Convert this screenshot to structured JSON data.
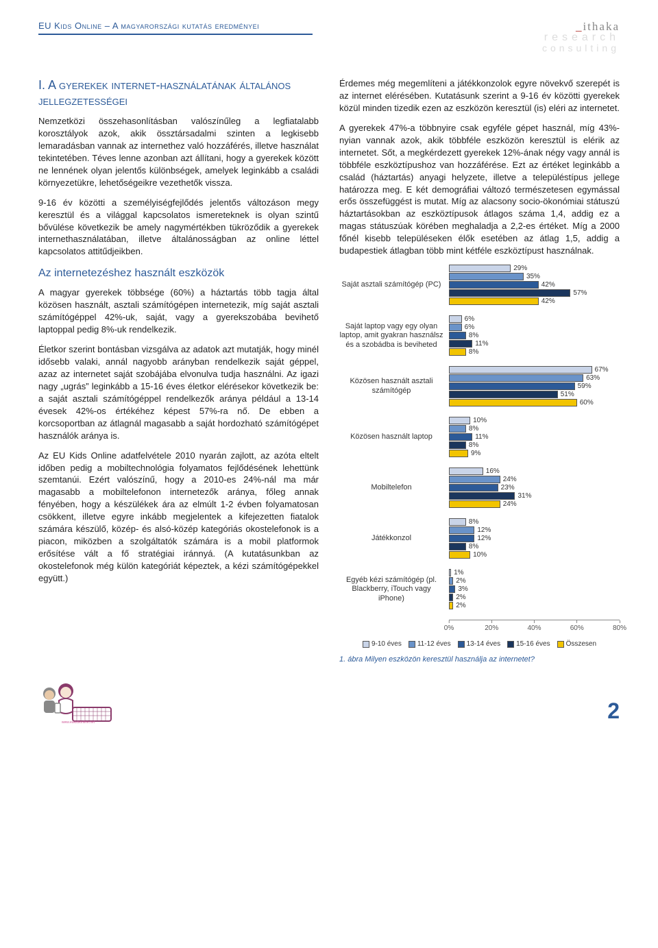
{
  "header": {
    "title": "EU Kids Online – A magyarországi kutatás eredményei",
    "logo_line1_pre": "_",
    "logo_line1_main": "ithaka",
    "logo_line2": "research",
    "logo_line3": "consulting"
  },
  "left_col": {
    "section_title": "I. A gyerekek internet-használatának általános jellegzetességei",
    "p1": "Nemzetközi összehasonlításban valószínűleg a legfiatalabb korosztályok azok, akik össztársadalmi szinten a legkisebb lemaradásban vannak az internethez való hozzáférés, illetve használat tekintetében. Téves lenne azonban azt állítani, hogy a gyerekek között ne lennének olyan jelentős különbségek, amelyek leginkább a családi környezetükre, lehetőségeikre vezethetők vissza.",
    "p2": "9-16 év közötti a személyiségfejlődés jelentős változáson megy keresztül és a világgal kapcsolatos ismereteknek is olyan szintű bővülése következik be amely nagymértékben tükröződik a gyerekek internethasználatában, illetve általánosságban az online léttel kapcsolatos attitűdjeikben.",
    "sub_title": "Az internetezéshez használt eszközök",
    "p3": "A magyar gyerekek többsége (60%) a háztartás több tagja által közösen használt, asztali számítógépen internetezik, míg saját asztali számítógéppel 42%-uk, saját, vagy a gyerekszobába bevihető laptoppal pedig 8%-uk rendelkezik.",
    "p4": "Életkor szerint bontásban vizsgálva az adatok azt mutatják, hogy minél idősebb valaki, annál nagyobb arányban rendelkezik saját géppel, azaz az internetet saját szobájába elvonulva tudja használni. Az igazi nagy „ugrás” leginkább a 15-16 éves életkor elérésekor következik be: a saját asztali számítógéppel rendelkezők aránya például a 13-14 évesek 42%-os értékéhez képest 57%-ra nő. De ebben a korcsoportban az átlagnál magasabb a saját hordozható számítógépet használók aránya is.",
    "p5": "Az EU Kids Online adatfelvétele 2010 nyarán zajlott, az azóta eltelt időben pedig a mobiltechnológia folyamatos fejlődésének lehettünk szemtanúi. Ezért valószínű, hogy a 2010-es 24%-nál ma már magasabb a mobiltelefonon internetezők aránya, főleg annak fényében, hogy a készülékek ára az elmúlt 1-2 évben folyamatosan csökkent, illetve egyre inkább megjelentek a kifejezetten fiatalok számára készülő, közép- és alsó-közép kategóriás okostelefonok is a piacon, miközben a szolgáltatók számára is a mobil platformok erősítése vált a fő stratégiai iránnyá. (A kutatásunkban az okostelefonok még külön kategóriát képeztek, a kézi számítógépekkel együtt.)"
  },
  "right_col": {
    "p1": "Érdemes még megemlíteni a játékkonzolok egyre növekvő szerepét is az internet elérésében. Kutatásunk szerint a 9-16 év közötti gyerekek közül minden tizedik ezen az eszközön keresztül (is) eléri az internetet.",
    "p2": "A gyerekek 47%-a többnyire csak egyféle gépet használ, míg 43%-nyian vannak azok, akik többféle eszközön keresztül is elérik az internetet. Sőt, a megkérdezett gyerekek 12%-ának négy vagy annál is többféle eszköztípushoz van hozzáférése. Ezt az értéket leginkább a család (háztartás) anyagi helyzete, illetve a településtípus jellege határozza meg. E két demográfiai változó természetesen egymással erős összefüggést is mutat. Míg az alacsony socio-ökonómiai státuszú háztartásokban az eszköztípusok átlagos száma 1,4, addig ez a magas státuszúak körében meghaladja a 2,2-es értéket. Míg a 2000 főnél kisebb településeken élők esetében az átlag 1,5, addig a budapestiek átlagban több mint kétféle eszköztípust használnak."
  },
  "chart": {
    "type": "bar",
    "xlim": [
      0,
      80
    ],
    "xtick_step": 20,
    "xtick_labels": [
      "0%",
      "20%",
      "40%",
      "60%",
      "80%"
    ],
    "series_colors": [
      "#c9d4e8",
      "#6a93c9",
      "#2c5a98",
      "#1b365d",
      "#f2c400"
    ],
    "border_color": "#555555",
    "grid_color": "#dddddd",
    "label_fontsize": 10,
    "series_names": [
      "9-10 éves",
      "11-12 éves",
      "13-14 éves",
      "15-16 éves",
      "Összesen"
    ],
    "categories": [
      {
        "label": "Saját asztali számítógép (PC)",
        "values": [
          29,
          35,
          42,
          57,
          42
        ]
      },
      {
        "label": "Saját laptop vagy egy olyan laptop, amit gyakran használsz és a szobádba is beviheted",
        "values": [
          6,
          6,
          8,
          11,
          8
        ]
      },
      {
        "label": "Közösen használt asztali számítógép",
        "values": [
          67,
          63,
          59,
          51,
          60
        ]
      },
      {
        "label": "Közösen használt laptop",
        "values": [
          10,
          8,
          11,
          8,
          9
        ]
      },
      {
        "label": "Mobiltelefon",
        "values": [
          16,
          24,
          23,
          31,
          24
        ]
      },
      {
        "label": "Játékkonzol",
        "values": [
          8,
          12,
          12,
          8,
          10
        ]
      },
      {
        "label": "Egyéb kézi számítógép (pl. Blackberry, iTouch vagy iPhone)",
        "values": [
          1,
          2,
          3,
          2,
          2
        ]
      }
    ],
    "caption": "1. ábra Milyen eszközön keresztül használja az internetet?"
  },
  "footer": {
    "page_number": "2",
    "logo_url_text": "www.eukidsonline.net"
  }
}
